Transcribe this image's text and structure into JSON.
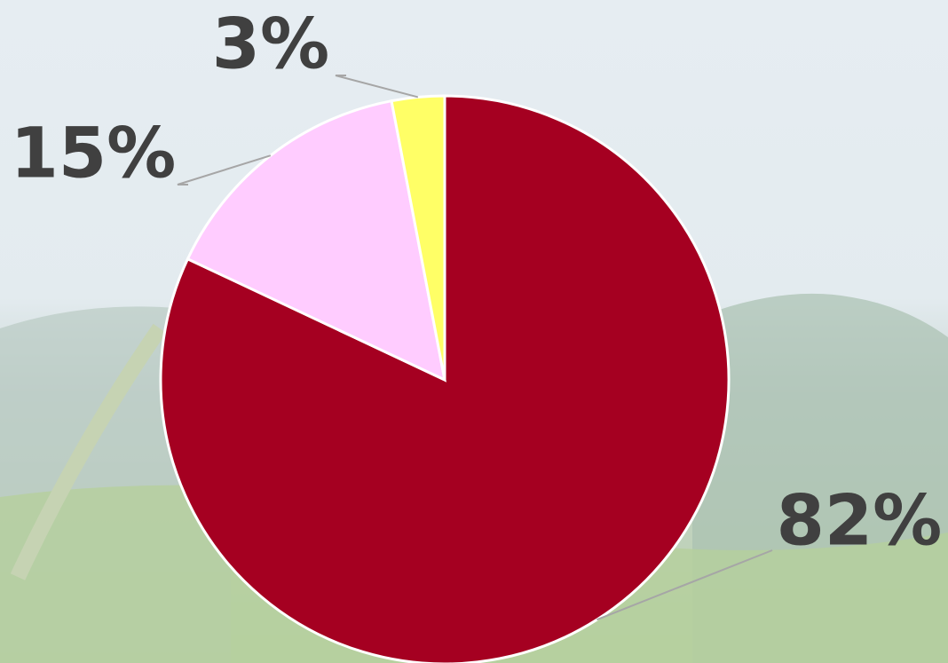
{
  "chart_data": {
    "type": "pie",
    "values": [
      82,
      15,
      3
    ],
    "value_labels": [
      "82%",
      "15%",
      "3%"
    ],
    "colors": [
      "#a50021",
      "#ffccff",
      "#ffff66"
    ]
  }
}
